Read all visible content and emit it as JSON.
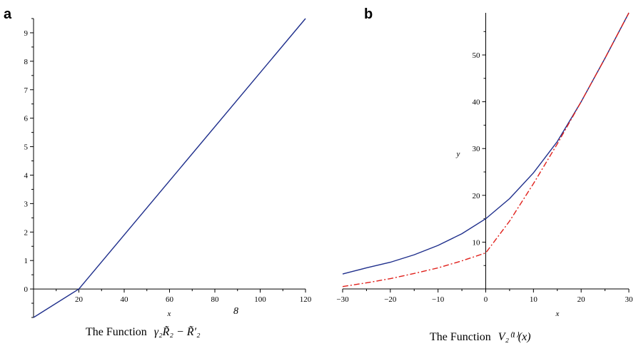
{
  "figure": {
    "panel_a_letter": "a",
    "panel_b_letter": "b",
    "stray_label": "8"
  },
  "chart_data": [
    {
      "type": "line",
      "panel": "a",
      "caption_prefix": "The Function",
      "caption_math": "γ₂R̃₂ − R̃′₂",
      "xlabel": "x",
      "ylabel": "",
      "xlim": [
        0,
        120
      ],
      "ylim": [
        -1,
        9.5
      ],
      "x_ticks": [
        20,
        40,
        60,
        80,
        100,
        120
      ],
      "y_ticks": [
        0,
        1,
        2,
        3,
        4,
        5,
        6,
        7,
        8,
        9
      ],
      "series": [
        {
          "color": "#1f2f8c",
          "dash": "solid",
          "x": [
            0,
            20,
            120
          ],
          "y": [
            -1.0,
            0.0,
            9.5
          ]
        }
      ]
    },
    {
      "type": "line",
      "panel": "b",
      "caption_prefix": "The Function",
      "caption_math": "V₂⁽¹⁾(x)",
      "xlabel": "x",
      "ylabel": "y",
      "xlim": [
        -30,
        30
      ],
      "ylim": [
        0,
        59
      ],
      "x_ticks": [
        -30,
        -20,
        -10,
        0,
        10,
        20,
        30
      ],
      "y_ticks": [
        10,
        20,
        30,
        40,
        50
      ],
      "series": [
        {
          "color": "#1f2f8c",
          "dash": "solid",
          "x": [
            -30,
            -25,
            -20,
            -15,
            -10,
            -5,
            0,
            5,
            10,
            15,
            20,
            25,
            30
          ],
          "y": [
            3.2,
            4.5,
            5.7,
            7.3,
            9.3,
            11.8,
            15.0,
            19.3,
            24.8,
            31.5,
            40.0,
            49.3,
            59.0
          ]
        },
        {
          "color": "#e0201b",
          "dash": "dashdot",
          "x": [
            -30,
            -25,
            -20,
            -15,
            -10,
            -5,
            0,
            5,
            10,
            15,
            20,
            25,
            30
          ],
          "y": [
            0.5,
            1.3,
            2.2,
            3.3,
            4.5,
            6.0,
            7.7,
            14.5,
            22.5,
            31.0,
            40.0,
            49.3,
            59.0
          ]
        }
      ]
    }
  ]
}
